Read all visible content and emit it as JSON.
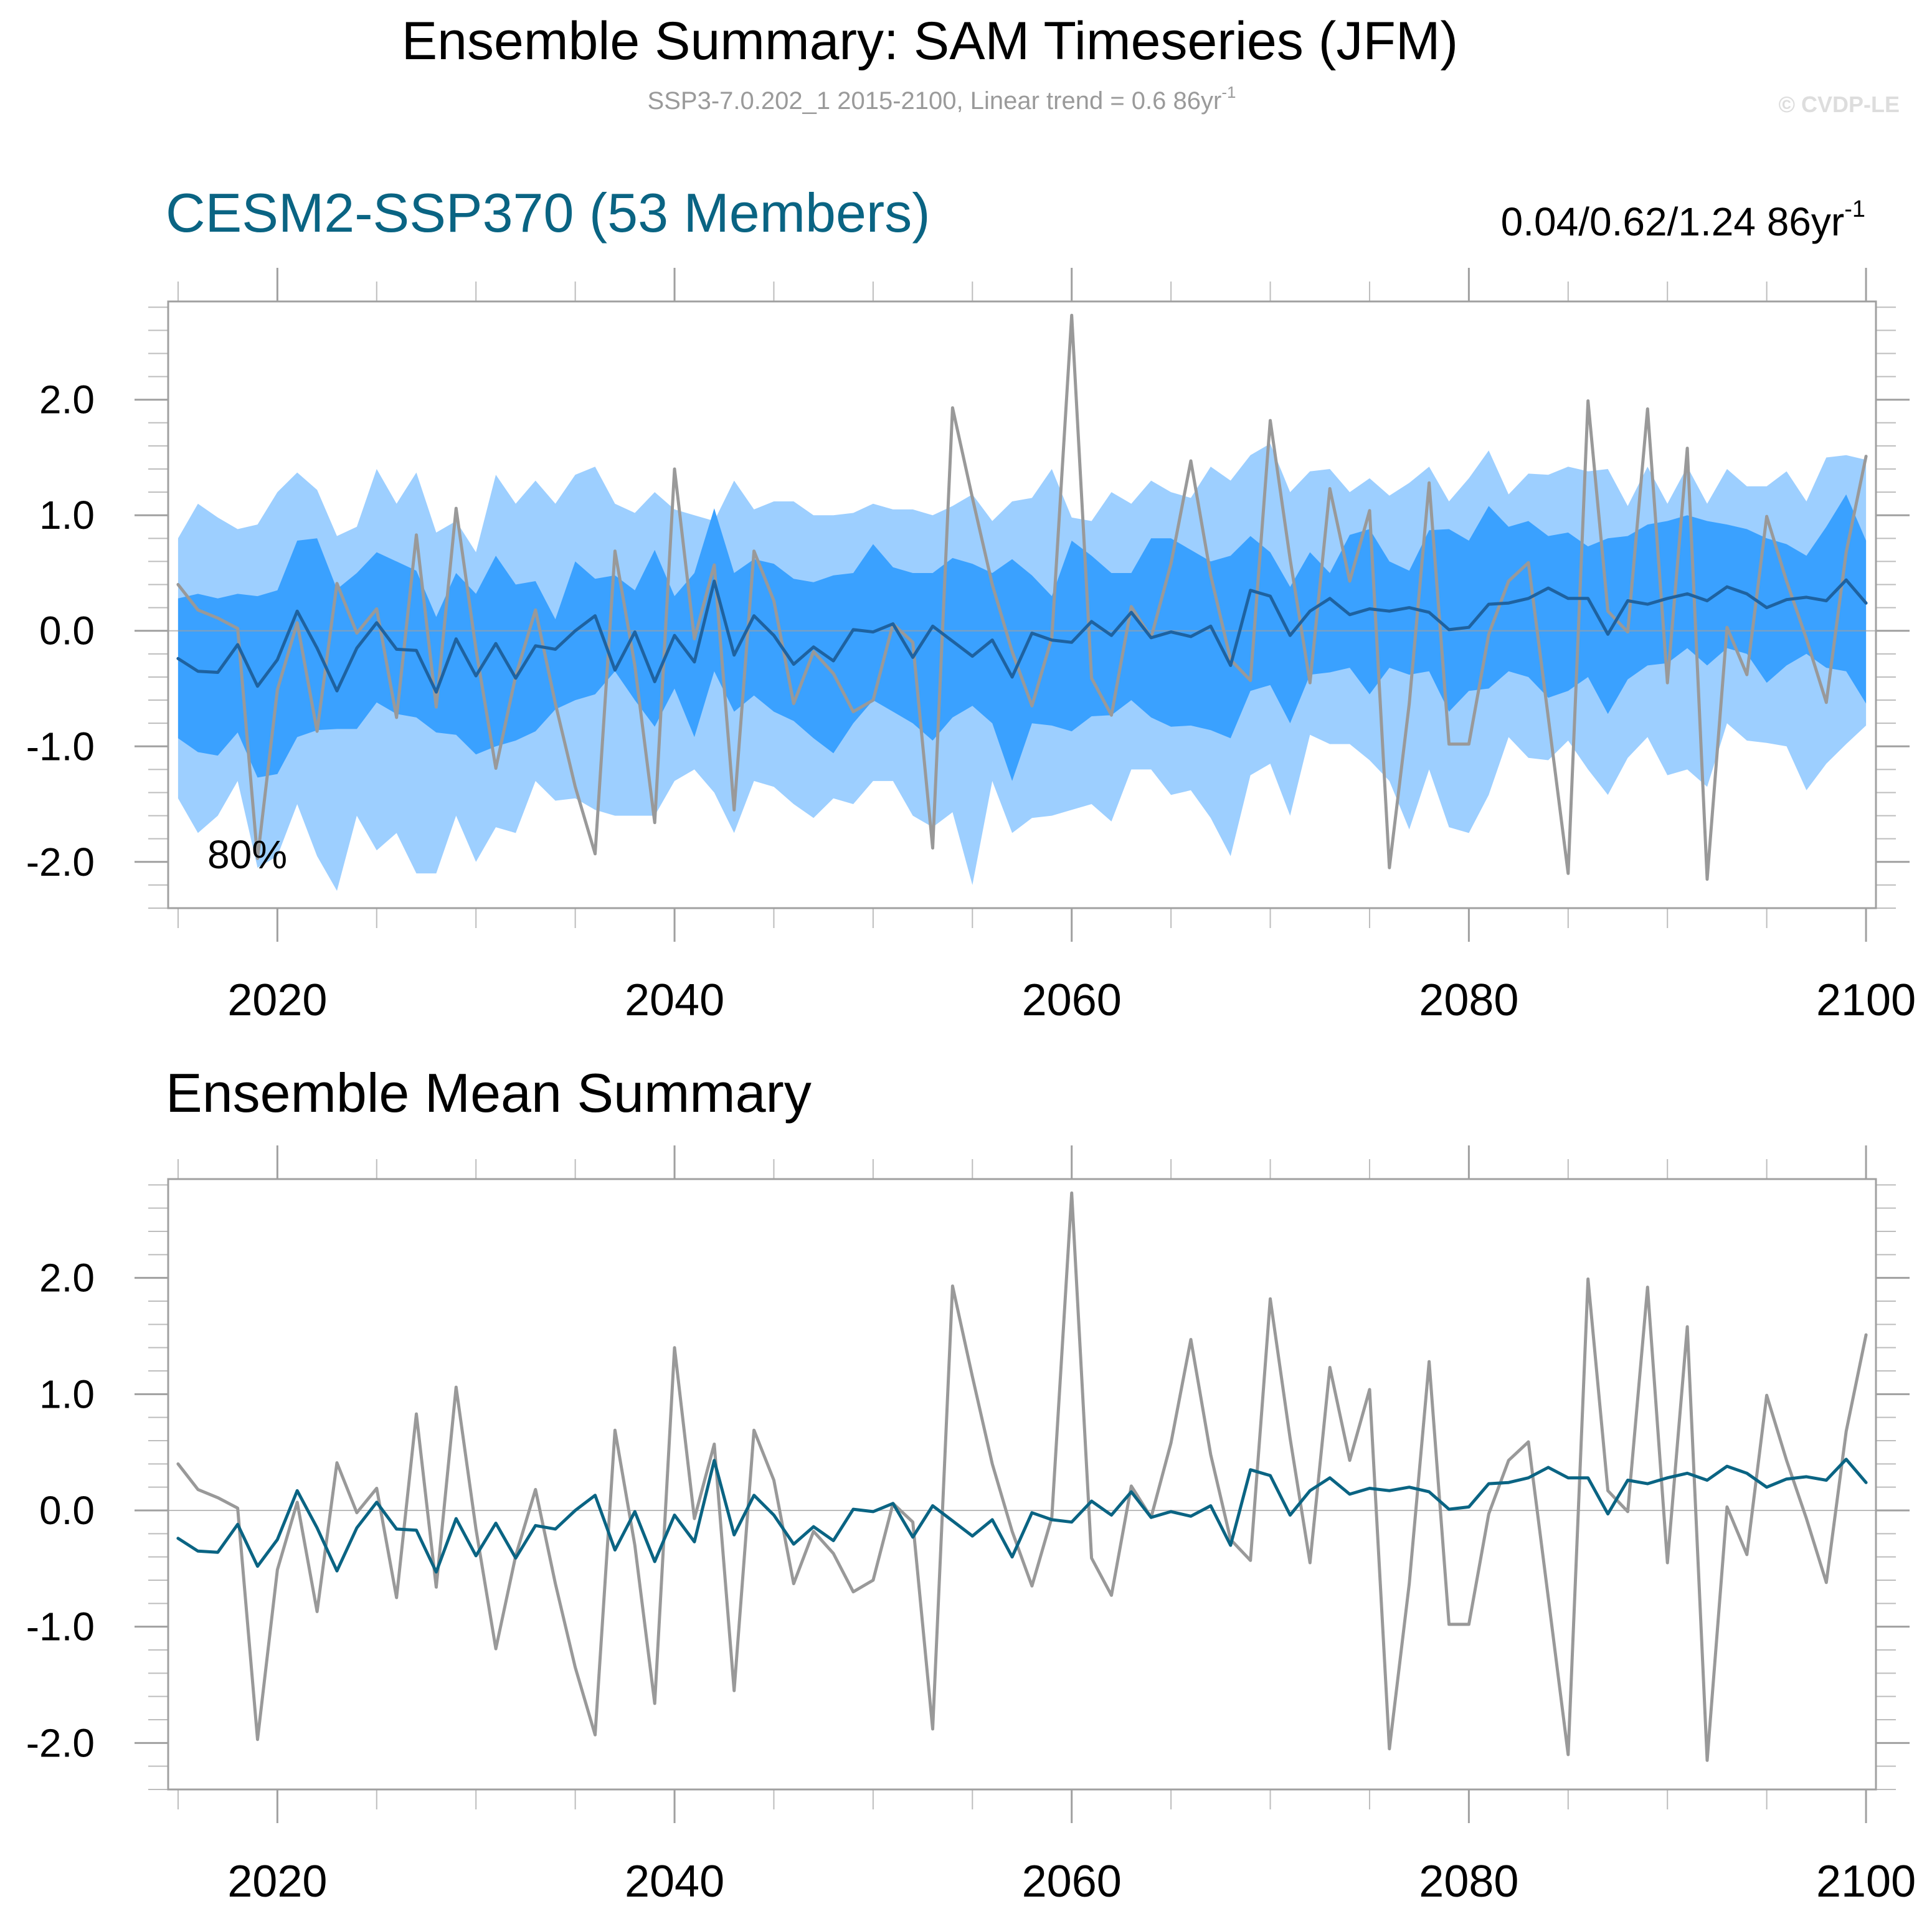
{
  "title": "Ensemble Summary: SAM Timeseries (JFM)",
  "subtitle": {
    "text": "SSP3-7.0.202_1 2015-2100, Linear trend = 0.6 86yr",
    "sup": "-1"
  },
  "copyright": "© CVDP-LE",
  "colors": {
    "band_outer": "#9dcfff",
    "band_inner": "#3aa1ff",
    "ens_mean_top": "#1e62a0",
    "ens_mean_bottom": "#0a6483",
    "obs_line": "#999999",
    "title_blue": "#0a6483"
  },
  "panel_top": {
    "title": "CESM2-SSP370 (53 Members)",
    "trend": {
      "text": "0.04/0.62/1.24 86yr",
      "sup": "-1"
    },
    "pct_label": "80%"
  },
  "panel_bottom": {
    "title": "Ensemble Mean Summary"
  },
  "chart_data": [
    {
      "type": "line",
      "panel": "top",
      "title": "CESM2-SSP370 (53 Members)",
      "xlabel": "",
      "ylabel": "",
      "xlim": [
        2014.5,
        2100.5
      ],
      "ylim": [
        -2.4,
        2.85
      ],
      "xticks": [
        {
          "value": 2020,
          "label": "2020"
        },
        {
          "value": 2040,
          "label": "2040"
        },
        {
          "value": 2060,
          "label": "2060"
        },
        {
          "value": 2080,
          "label": "2080"
        },
        {
          "value": 2100,
          "label": "2100"
        }
      ],
      "yticks": [
        {
          "value": 2,
          "label": "2.0"
        },
        {
          "value": 1,
          "label": "1.0"
        },
        {
          "value": 0,
          "label": "0.0"
        },
        {
          "value": -1,
          "label": "-1.0"
        },
        {
          "value": -2,
          "label": "-2.0"
        }
      ],
      "x": [
        2015,
        2016,
        2017,
        2018,
        2019,
        2020,
        2021,
        2022,
        2023,
        2024,
        2025,
        2026,
        2027,
        2028,
        2029,
        2030,
        2031,
        2032,
        2033,
        2034,
        2035,
        2036,
        2037,
        2038,
        2039,
        2040,
        2041,
        2042,
        2043,
        2044,
        2045,
        2046,
        2047,
        2048,
        2049,
        2050,
        2051,
        2052,
        2053,
        2054,
        2055,
        2056,
        2057,
        2058,
        2059,
        2060,
        2061,
        2062,
        2063,
        2064,
        2065,
        2066,
        2067,
        2068,
        2069,
        2070,
        2071,
        2072,
        2073,
        2074,
        2075,
        2076,
        2077,
        2078,
        2079,
        2080,
        2081,
        2082,
        2083,
        2084,
        2085,
        2086,
        2087,
        2088,
        2089,
        2090,
        2091,
        2092,
        2093,
        2094,
        2095,
        2096,
        2097,
        2098,
        2099,
        2100
      ],
      "bands": [
        {
          "name": "range",
          "upper": [
            0.8,
            1.1,
            0.98,
            0.88,
            0.92,
            1.2,
            1.37,
            1.22,
            0.82,
            0.9,
            1.4,
            1.1,
            1.37,
            0.85,
            0.95,
            0.68,
            1.35,
            1.1,
            1.3,
            1.1,
            1.35,
            1.42,
            1.1,
            1.02,
            1.2,
            1.05,
            1.0,
            0.95,
            1.3,
            1.05,
            1.12,
            1.12,
            1.0,
            1.0,
            1.02,
            1.1,
            1.05,
            1.05,
            1.0,
            1.08,
            1.18,
            0.95,
            1.12,
            1.15,
            1.4,
            0.98,
            0.95,
            1.2,
            1.1,
            1.3,
            1.2,
            1.15,
            1.42,
            1.3,
            1.52,
            1.62,
            1.2,
            1.38,
            1.4,
            1.2,
            1.32,
            1.17,
            1.28,
            1.42,
            1.12,
            1.32,
            1.56,
            1.18,
            1.36,
            1.35,
            1.42,
            1.38,
            1.4,
            1.08,
            1.42,
            1.1,
            1.42,
            1.1,
            1.4,
            1.25,
            1.25,
            1.38,
            1.12,
            1.5,
            1.52,
            1.48
          ],
          "lower": [
            -1.45,
            -1.75,
            -1.6,
            -1.3,
            -2.05,
            -1.95,
            -1.5,
            -1.95,
            -2.25,
            -1.6,
            -1.9,
            -1.75,
            -2.1,
            -2.1,
            -1.6,
            -2.0,
            -1.7,
            -1.75,
            -1.3,
            -1.47,
            -1.45,
            -1.55,
            -1.6,
            -1.6,
            -1.6,
            -1.3,
            -1.2,
            -1.4,
            -1.75,
            -1.3,
            -1.35,
            -1.5,
            -1.62,
            -1.45,
            -1.5,
            -1.3,
            -1.3,
            -1.6,
            -1.7,
            -1.57,
            -2.2,
            -1.3,
            -1.75,
            -1.62,
            -1.6,
            -1.55,
            -1.5,
            -1.65,
            -1.2,
            -1.2,
            -1.42,
            -1.38,
            -1.62,
            -1.95,
            -1.25,
            -1.15,
            -1.6,
            -0.9,
            -0.98,
            -0.98,
            -1.12,
            -1.3,
            -1.72,
            -1.2,
            -1.7,
            -1.75,
            -1.42,
            -0.92,
            -1.1,
            -1.12,
            -0.95,
            -1.2,
            -1.42,
            -1.1,
            -0.92,
            -1.25,
            -1.2,
            -1.35,
            -0.8,
            -0.95,
            -0.97,
            -1.0,
            -1.38,
            -1.15,
            -0.98,
            -0.82
          ]
        },
        {
          "name": "percentile",
          "label": "80%",
          "upper": [
            0.28,
            0.32,
            0.28,
            0.32,
            0.3,
            0.35,
            0.78,
            0.8,
            0.36,
            0.5,
            0.68,
            0.6,
            0.52,
            0.12,
            0.5,
            0.32,
            0.65,
            0.4,
            0.43,
            0.1,
            0.6,
            0.45,
            0.48,
            0.35,
            0.7,
            0.3,
            0.5,
            1.06,
            0.5,
            0.62,
            0.58,
            0.45,
            0.42,
            0.48,
            0.5,
            0.75,
            0.55,
            0.5,
            0.5,
            0.63,
            0.58,
            0.5,
            0.62,
            0.48,
            0.3,
            0.78,
            0.65,
            0.5,
            0.5,
            0.8,
            0.8,
            0.7,
            0.6,
            0.65,
            0.82,
            0.68,
            0.38,
            0.68,
            0.5,
            0.83,
            0.88,
            0.6,
            0.52,
            0.87,
            0.88,
            0.78,
            1.08,
            0.9,
            0.95,
            0.82,
            0.85,
            0.73,
            0.8,
            0.82,
            0.92,
            0.95,
            1.0,
            0.95,
            0.92,
            0.88,
            0.8,
            0.75,
            0.65,
            0.9,
            1.18,
            0.78
          ],
          "lower": [
            -0.93,
            -1.05,
            -1.08,
            -0.88,
            -1.27,
            -1.24,
            -0.92,
            -0.86,
            -0.85,
            -0.85,
            -0.62,
            -0.72,
            -0.75,
            -0.88,
            -0.9,
            -1.07,
            -1.0,
            -0.95,
            -0.87,
            -0.68,
            -0.6,
            -0.55,
            -0.35,
            -0.6,
            -0.83,
            -0.5,
            -0.92,
            -0.35,
            -0.7,
            -0.56,
            -0.7,
            -0.78,
            -0.93,
            -1.06,
            -0.8,
            -0.6,
            -0.7,
            -0.8,
            -0.95,
            -0.75,
            -0.65,
            -0.8,
            -1.3,
            -0.8,
            -0.82,
            -0.87,
            -0.74,
            -0.73,
            -0.6,
            -0.75,
            -0.83,
            -0.82,
            -0.86,
            -0.93,
            -0.52,
            -0.47,
            -0.8,
            -0.38,
            -0.36,
            -0.32,
            -0.55,
            -0.32,
            -0.38,
            -0.35,
            -0.7,
            -0.52,
            -0.5,
            -0.35,
            -0.4,
            -0.58,
            -0.52,
            -0.4,
            -0.72,
            -0.42,
            -0.3,
            -0.28,
            -0.15,
            -0.3,
            -0.15,
            -0.2,
            -0.45,
            -0.3,
            -0.2,
            -0.32,
            -0.35,
            -0.63
          ]
        }
      ],
      "series": [
        {
          "name": "ensemble mean",
          "color": "#1e62a0",
          "values": [
            -0.24,
            -0.35,
            -0.36,
            -0.12,
            -0.48,
            -0.25,
            0.17,
            -0.15,
            -0.52,
            -0.15,
            0.07,
            -0.16,
            -0.17,
            -0.53,
            -0.07,
            -0.39,
            -0.11,
            -0.41,
            -0.13,
            -0.16,
            0.0,
            0.13,
            -0.34,
            -0.01,
            -0.44,
            -0.04,
            -0.27,
            0.43,
            -0.21,
            0.13,
            -0.04,
            -0.29,
            -0.14,
            -0.26,
            0.01,
            -0.01,
            0.06,
            -0.23,
            0.04,
            -0.09,
            -0.22,
            -0.08,
            -0.4,
            -0.02,
            -0.08,
            -0.1,
            0.08,
            -0.04,
            0.16,
            -0.06,
            -0.01,
            -0.05,
            0.04,
            -0.3,
            0.35,
            0.3,
            -0.04,
            0.17,
            0.28,
            0.14,
            0.19,
            0.17,
            0.2,
            0.16,
            0.01,
            0.03,
            0.23,
            0.24,
            0.28,
            0.37,
            0.28,
            0.28,
            -0.03,
            0.26,
            0.23,
            0.28,
            0.32,
            0.26,
            0.38,
            0.32,
            0.2,
            0.27,
            0.29,
            0.26,
            0.44,
            0.24
          ]
        },
        {
          "name": "observations",
          "color": "#999999",
          "values": [
            0.4,
            0.18,
            0.11,
            0.02,
            -1.97,
            -0.51,
            0.07,
            -0.87,
            0.41,
            -0.02,
            0.19,
            -0.75,
            0.83,
            -0.66,
            1.06,
            -0.16,
            -1.19,
            -0.39,
            0.18,
            -0.63,
            -1.35,
            -1.93,
            0.69,
            -0.3,
            -1.66,
            1.4,
            -0.07,
            0.57,
            -1.55,
            0.69,
            0.26,
            -0.63,
            -0.18,
            -0.37,
            -0.7,
            -0.6,
            0.06,
            -0.1,
            -1.88,
            1.93,
            1.15,
            0.4,
            -0.18,
            -0.65,
            -0.06,
            2.73,
            -0.41,
            -0.73,
            0.21,
            -0.06,
            0.58,
            1.47,
            0.48,
            -0.25,
            -0.43,
            1.82,
            0.62,
            -0.45,
            1.23,
            0.43,
            1.04,
            -2.05,
            -0.63,
            1.28,
            -0.98,
            -0.98,
            -0.03,
            0.43,
            0.59,
            -0.75,
            -2.1,
            1.99,
            0.17,
            -0.01,
            1.92,
            -0.45,
            1.58,
            -2.15,
            0.03,
            -0.38,
            0.99,
            0.43,
            -0.07,
            -0.62,
            0.68,
            1.51
          ]
        }
      ]
    },
    {
      "type": "line",
      "panel": "bottom",
      "title": "Ensemble Mean Summary",
      "xlabel": "",
      "ylabel": "",
      "xlim": [
        2014.5,
        2100.5
      ],
      "ylim": [
        -2.4,
        2.85
      ],
      "xticks": [
        {
          "value": 2020,
          "label": "2020"
        },
        {
          "value": 2040,
          "label": "2040"
        },
        {
          "value": 2060,
          "label": "2060"
        },
        {
          "value": 2080,
          "label": "2080"
        },
        {
          "value": 2100,
          "label": "2100"
        }
      ],
      "yticks": [
        {
          "value": 2,
          "label": "2.0"
        },
        {
          "value": 1,
          "label": "1.0"
        },
        {
          "value": 0,
          "label": "0.0"
        },
        {
          "value": -1,
          "label": "-1.0"
        },
        {
          "value": -2,
          "label": "-2.0"
        }
      ],
      "x": [
        2015,
        2016,
        2017,
        2018,
        2019,
        2020,
        2021,
        2022,
        2023,
        2024,
        2025,
        2026,
        2027,
        2028,
        2029,
        2030,
        2031,
        2032,
        2033,
        2034,
        2035,
        2036,
        2037,
        2038,
        2039,
        2040,
        2041,
        2042,
        2043,
        2044,
        2045,
        2046,
        2047,
        2048,
        2049,
        2050,
        2051,
        2052,
        2053,
        2054,
        2055,
        2056,
        2057,
        2058,
        2059,
        2060,
        2061,
        2062,
        2063,
        2064,
        2065,
        2066,
        2067,
        2068,
        2069,
        2070,
        2071,
        2072,
        2073,
        2074,
        2075,
        2076,
        2077,
        2078,
        2079,
        2080,
        2081,
        2082,
        2083,
        2084,
        2085,
        2086,
        2087,
        2088,
        2089,
        2090,
        2091,
        2092,
        2093,
        2094,
        2095,
        2096,
        2097,
        2098,
        2099,
        2100
      ],
      "series": [
        {
          "name": "ensemble mean",
          "color": "#0a6483",
          "values": [
            -0.24,
            -0.35,
            -0.36,
            -0.12,
            -0.48,
            -0.25,
            0.17,
            -0.15,
            -0.52,
            -0.15,
            0.07,
            -0.16,
            -0.17,
            -0.53,
            -0.07,
            -0.39,
            -0.11,
            -0.41,
            -0.13,
            -0.16,
            0.0,
            0.13,
            -0.34,
            -0.01,
            -0.44,
            -0.04,
            -0.27,
            0.43,
            -0.21,
            0.13,
            -0.04,
            -0.29,
            -0.14,
            -0.26,
            0.01,
            -0.01,
            0.06,
            -0.23,
            0.04,
            -0.09,
            -0.22,
            -0.08,
            -0.4,
            -0.02,
            -0.08,
            -0.1,
            0.08,
            -0.04,
            0.16,
            -0.06,
            -0.01,
            -0.05,
            0.04,
            -0.3,
            0.35,
            0.3,
            -0.04,
            0.17,
            0.28,
            0.14,
            0.19,
            0.17,
            0.2,
            0.16,
            0.01,
            0.03,
            0.23,
            0.24,
            0.28,
            0.37,
            0.28,
            0.28,
            -0.03,
            0.26,
            0.23,
            0.28,
            0.32,
            0.26,
            0.38,
            0.32,
            0.2,
            0.27,
            0.29,
            0.26,
            0.44,
            0.24
          ]
        },
        {
          "name": "observations",
          "color": "#999999",
          "values": [
            0.4,
            0.18,
            0.11,
            0.02,
            -1.97,
            -0.51,
            0.07,
            -0.87,
            0.41,
            -0.02,
            0.19,
            -0.75,
            0.83,
            -0.66,
            1.06,
            -0.16,
            -1.19,
            -0.39,
            0.18,
            -0.63,
            -1.35,
            -1.93,
            0.69,
            -0.3,
            -1.66,
            1.4,
            -0.07,
            0.57,
            -1.55,
            0.69,
            0.26,
            -0.63,
            -0.18,
            -0.37,
            -0.7,
            -0.6,
            0.06,
            -0.1,
            -1.88,
            1.93,
            1.15,
            0.4,
            -0.18,
            -0.65,
            -0.06,
            2.73,
            -0.41,
            -0.73,
            0.21,
            -0.06,
            0.58,
            1.47,
            0.48,
            -0.25,
            -0.43,
            1.82,
            0.62,
            -0.45,
            1.23,
            0.43,
            1.04,
            -2.05,
            -0.63,
            1.28,
            -0.98,
            -0.98,
            -0.03,
            0.43,
            0.59,
            -0.75,
            -2.1,
            1.99,
            0.17,
            -0.01,
            1.92,
            -0.45,
            1.58,
            -2.15,
            0.03,
            -0.38,
            0.99,
            0.43,
            -0.07,
            -0.62,
            0.68,
            1.51
          ]
        }
      ]
    }
  ]
}
